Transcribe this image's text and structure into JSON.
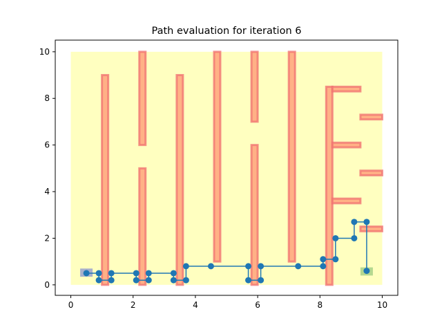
{
  "chart_data": {
    "type": "line",
    "title": "Path evaluation for iteration 6",
    "xlabel": "",
    "ylabel": "",
    "xlim": [
      -0.5,
      10.5
    ],
    "ylim": [
      -0.45,
      10.5
    ],
    "xticks": [
      0,
      2,
      4,
      6,
      8,
      10
    ],
    "yticks": [
      0,
      2,
      4,
      6,
      8,
      10
    ],
    "grid": false,
    "colors": {
      "region": "#ffffc0",
      "obstacle_fill": "#ffa880",
      "obstacle_edge": "#f07070",
      "path": "#1f77b4",
      "start": "#a8b0cc",
      "goal": "#b4d890"
    },
    "region": {
      "x0": 0,
      "y0": 0,
      "x1": 10,
      "y1": 10
    },
    "obstacles": [
      {
        "x0": 1.0,
        "y0": 0.0,
        "x1": 1.2,
        "y1": 9.0
      },
      {
        "x0": 2.2,
        "y0": 6.0,
        "x1": 2.4,
        "y1": 10.0
      },
      {
        "x0": 2.2,
        "y0": 0.0,
        "x1": 2.4,
        "y1": 5.0
      },
      {
        "x0": 3.4,
        "y0": 0.0,
        "x1": 3.6,
        "y1": 9.0
      },
      {
        "x0": 4.6,
        "y0": 1.0,
        "x1": 4.8,
        "y1": 10.0
      },
      {
        "x0": 5.8,
        "y0": 7.0,
        "x1": 6.0,
        "y1": 10.0
      },
      {
        "x0": 5.8,
        "y0": 0.0,
        "x1": 6.0,
        "y1": 6.0
      },
      {
        "x0": 7.0,
        "y0": 1.0,
        "x1": 7.2,
        "y1": 10.0
      },
      {
        "x0": 8.2,
        "y0": 0.0,
        "x1": 8.4,
        "y1": 8.5
      },
      {
        "x0": 8.4,
        "y0": 8.3,
        "x1": 9.3,
        "y1": 8.5
      },
      {
        "x0": 9.3,
        "y0": 7.1,
        "x1": 10.0,
        "y1": 7.3
      },
      {
        "x0": 8.4,
        "y0": 5.9,
        "x1": 9.3,
        "y1": 6.1
      },
      {
        "x0": 9.3,
        "y0": 4.7,
        "x1": 10.0,
        "y1": 4.9
      },
      {
        "x0": 8.4,
        "y0": 3.5,
        "x1": 9.3,
        "y1": 3.7
      },
      {
        "x0": 9.3,
        "y0": 2.3,
        "x1": 10.0,
        "y1": 2.5
      }
    ],
    "start": {
      "x0": 0.3,
      "y0": 0.35,
      "x1": 0.7,
      "y1": 0.7
    },
    "goal": {
      "x0": 9.3,
      "y0": 0.4,
      "x1": 9.7,
      "y1": 0.75
    },
    "series": [
      {
        "x": [
          0.5,
          0.9,
          0.9,
          1.3,
          1.3,
          2.1,
          2.1,
          2.5,
          2.5,
          3.3,
          3.3,
          3.7,
          3.7,
          4.5,
          5.7,
          5.7,
          6.1,
          6.1,
          7.3,
          8.1,
          8.1,
          8.5,
          8.5,
          9.1,
          9.1,
          9.5,
          9.5
        ],
        "y": [
          0.5,
          0.5,
          0.2,
          0.2,
          0.5,
          0.5,
          0.2,
          0.2,
          0.5,
          0.5,
          0.2,
          0.2,
          0.8,
          0.8,
          0.8,
          0.2,
          0.2,
          0.8,
          0.8,
          0.8,
          1.1,
          1.1,
          2.0,
          2.0,
          2.7,
          2.7,
          0.6
        ]
      }
    ]
  }
}
